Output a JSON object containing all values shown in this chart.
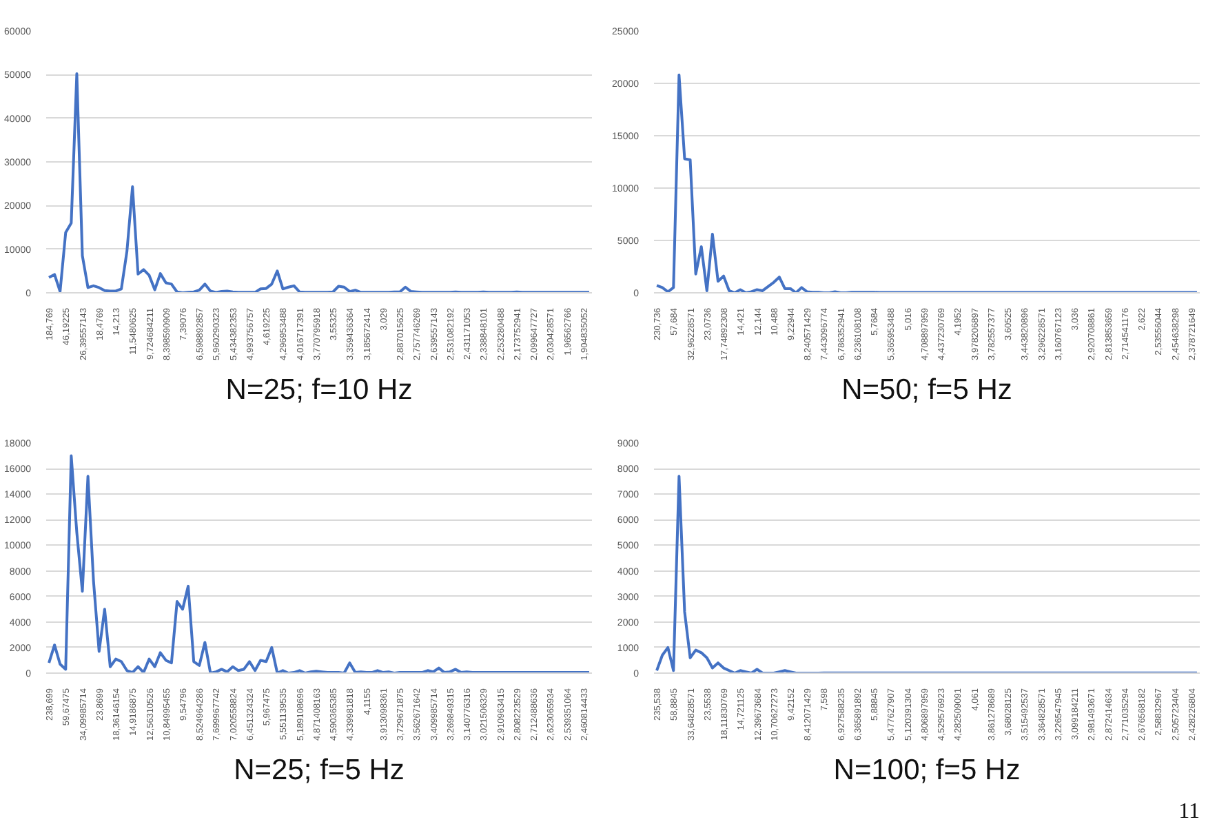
{
  "chart_data": [
    {
      "type": "line",
      "title": "N=25; f=10 Hz",
      "color": "#4472c4",
      "grid": "y",
      "ylim": [
        0,
        60000
      ],
      "yticks": [
        0,
        10000,
        20000,
        30000,
        40000,
        50000,
        60000
      ],
      "categories": [
        "184,769",
        null,
        null,
        "46,19225",
        null,
        null,
        "26,39557143",
        null,
        null,
        "18,4769",
        null,
        null,
        "14,213",
        null,
        null,
        "11,5480625",
        null,
        null,
        "9,724684211",
        null,
        null,
        "8,398590909",
        null,
        null,
        "7,39076",
        null,
        null,
        "6,598892857",
        null,
        null,
        "5,960290323",
        null,
        null,
        "5,434382353",
        null,
        null,
        "4,993756757",
        null,
        null,
        "4,619225",
        null,
        null,
        "4,296953488",
        null,
        null,
        "4,016717391",
        null,
        null,
        "3,770795918",
        null,
        null,
        "3,55325",
        null,
        null,
        "3,359436364",
        null,
        null,
        "3,185672414",
        null,
        null,
        "3,029",
        null,
        null,
        "2,887015625",
        null,
        null,
        "2,757746269",
        null,
        null,
        "2,639557143",
        null,
        null,
        "2,531082192",
        null,
        null,
        "2,431171053",
        null,
        null,
        "2,338848101",
        null,
        null,
        "2,253280488",
        null,
        null,
        "2,173752941",
        null,
        null,
        "2,099647727",
        null,
        null,
        "2,030428571",
        null,
        null,
        "1,96562766",
        null,
        null,
        "1,904835052",
        null
      ],
      "values": [
        3500,
        4200,
        300,
        13800,
        16000,
        50200,
        8500,
        1200,
        1600,
        1200,
        500,
        400,
        400,
        900,
        9500,
        24300,
        4300,
        5300,
        4000,
        700,
        4400,
        2300,
        2000,
        200,
        0,
        100,
        200,
        600,
        2000,
        400,
        100,
        300,
        400,
        200,
        100,
        100,
        100,
        100,
        900,
        1000,
        2000,
        5000,
        900,
        1300,
        1600,
        200,
        100,
        100,
        100,
        100,
        100,
        200,
        1500,
        1300,
        300,
        600,
        100,
        100,
        100,
        100,
        100,
        100,
        200,
        200,
        1300,
        300,
        200,
        100,
        100,
        100,
        100,
        100,
        100,
        200,
        100,
        100,
        100,
        100,
        200,
        100,
        100,
        100,
        100,
        100,
        200,
        100,
        100,
        100,
        100,
        100,
        100,
        100,
        100,
        100,
        100,
        100,
        100,
        100
      ]
    },
    {
      "type": "line",
      "title": "N=50; f=5 Hz",
      "color": "#4472c4",
      "grid": "y",
      "ylim": [
        0,
        25000
      ],
      "yticks": [
        0,
        5000,
        10000,
        15000,
        20000,
        25000
      ],
      "categories": [
        "230,736",
        null,
        null,
        "57,684",
        null,
        null,
        "32,96228571",
        null,
        null,
        "23,0736",
        null,
        null,
        "17,74892308",
        null,
        null,
        "14,421",
        null,
        null,
        "12,144",
        null,
        null,
        "10,488",
        null,
        null,
        "9,22944",
        null,
        null,
        "8,240571429",
        null,
        null,
        "7,443096774",
        null,
        null,
        "6,786352941",
        null,
        null,
        "6,236108108",
        null,
        null,
        "5,7684",
        null,
        null,
        "5,365953488",
        null,
        null,
        "5,016",
        null,
        null,
        "4,708897959",
        null,
        null,
        "4,437230769",
        null,
        null,
        "4,1952",
        null,
        null,
        "3,978206897",
        null,
        null,
        "3,782557377",
        null,
        null,
        "3,60525",
        null,
        null,
        "3,443820896",
        null,
        null,
        "3,296228571",
        null,
        null,
        "3,160767123",
        null,
        null,
        "3,036",
        null,
        null,
        "2,920708861",
        null,
        null,
        "2,813853659",
        null,
        null,
        "2,714541176",
        null,
        null,
        "2,622",
        null,
        null,
        "2,53556044",
        null,
        null,
        "2,454638298",
        null,
        null,
        "2,378721649",
        null
      ],
      "values": [
        700,
        500,
        100,
        500,
        20800,
        12800,
        12700,
        1800,
        4400,
        200,
        5600,
        1100,
        1600,
        200,
        0,
        300,
        0,
        100,
        300,
        200,
        600,
        1000,
        1500,
        400,
        400,
        0,
        500,
        100,
        50,
        50,
        0,
        0,
        100,
        0,
        0,
        50,
        50,
        50,
        50,
        50,
        30,
        30,
        30,
        30,
        30,
        30,
        30,
        30,
        30,
        30,
        30,
        30,
        30,
        30,
        30,
        30,
        30,
        30,
        30,
        30,
        30,
        30,
        30,
        30,
        30,
        30,
        30,
        30,
        30,
        30,
        30,
        30,
        30,
        30,
        30,
        30,
        30,
        30,
        30,
        30,
        30,
        30,
        30,
        30,
        30,
        30,
        30,
        30,
        30,
        30,
        30,
        30,
        30,
        30,
        30,
        30,
        30,
        30
      ]
    },
    {
      "type": "line",
      "title": "N=25; f=5 Hz",
      "color": "#4472c4",
      "grid": "y",
      "ylim": [
        0,
        18000
      ],
      "yticks": [
        0,
        2000,
        4000,
        6000,
        8000,
        10000,
        12000,
        14000,
        16000,
        18000
      ],
      "categories": [
        "238,699",
        null,
        null,
        "59,67475",
        null,
        null,
        "34,09985714",
        null,
        null,
        "23,8699",
        null,
        null,
        "18,36146154",
        null,
        null,
        "14,9186875",
        null,
        null,
        "12,56310526",
        null,
        null,
        "10,84995455",
        null,
        null,
        "9,54796",
        null,
        null,
        "8,524964286",
        null,
        null,
        "7,699967742",
        null,
        null,
        "7,020558824",
        null,
        null,
        "6,451324324",
        null,
        null,
        "5,967475",
        null,
        null,
        "5,551139535",
        null,
        null,
        "5,189108696",
        null,
        null,
        "4,871408163",
        null,
        null,
        "4,590365385",
        null,
        null,
        "4,339981818",
        null,
        null,
        "4,1155",
        null,
        null,
        "3,913098361",
        null,
        null,
        "3,729671875",
        null,
        null,
        "3,562671642",
        null,
        null,
        "3,409985714",
        null,
        null,
        "3,269849315",
        null,
        null,
        "3,140776316",
        null,
        null,
        "3,021506329",
        null,
        null,
        "2,910963415",
        null,
        null,
        "2,808223529",
        null,
        null,
        "2,712488636",
        null,
        null,
        "2,623065934",
        null,
        null,
        "2,539351064",
        null,
        null,
        "2,460814433",
        null
      ],
      "values": [
        800,
        2200,
        700,
        300,
        17000,
        11000,
        6400,
        15400,
        7200,
        1700,
        5000,
        500,
        1100,
        900,
        200,
        50,
        500,
        50,
        1100,
        500,
        1600,
        1000,
        800,
        5600,
        5000,
        6800,
        900,
        600,
        2400,
        0,
        100,
        300,
        100,
        500,
        200,
        300,
        900,
        200,
        1000,
        900,
        2000,
        0,
        200,
        0,
        50,
        200,
        0,
        100,
        150,
        100,
        50,
        50,
        50,
        0,
        800,
        50,
        100,
        50,
        50,
        200,
        50,
        100,
        0,
        50,
        50,
        50,
        50,
        50,
        200,
        100,
        400,
        50,
        100,
        300,
        50,
        100,
        50,
        50,
        50,
        50,
        50,
        50,
        50,
        50,
        50,
        50,
        50,
        50,
        50,
        50,
        50,
        50,
        50,
        50,
        50,
        50,
        50,
        50
      ]
    },
    {
      "type": "line",
      "title": "N=100; f=5 Hz",
      "color": "#4472c4",
      "grid": "y",
      "ylim": [
        0,
        9000
      ],
      "yticks": [
        0,
        1000,
        2000,
        3000,
        4000,
        5000,
        6000,
        7000,
        8000,
        9000
      ],
      "annotations": [
        "11"
      ],
      "categories": [
        "235,538",
        null,
        null,
        "58,8845",
        null,
        null,
        "33,64828571",
        null,
        null,
        "23,5538",
        null,
        null,
        "18,11830769",
        null,
        null,
        "14,721125",
        null,
        null,
        "12,39673684",
        null,
        null,
        "10,70627273",
        null,
        null,
        "9,42152",
        null,
        null,
        "8,412071429",
        null,
        null,
        "7,598",
        null,
        null,
        "6,927588235",
        null,
        null,
        "6,365891892",
        null,
        null,
        "5,88845",
        null,
        null,
        "5,477627907",
        null,
        null,
        "5,120391304",
        null,
        null,
        "4,806897959",
        null,
        null,
        "4,529576923",
        null,
        null,
        "4,282509091",
        null,
        null,
        "4,061",
        null,
        null,
        "3,861278689",
        null,
        null,
        "3,68028125",
        null,
        null,
        "3,515492537",
        null,
        null,
        "3,364828571",
        null,
        null,
        "3,226547945",
        null,
        null,
        "3,099184211",
        null,
        null,
        "2,981493671",
        null,
        null,
        "2,872414634",
        null,
        null,
        "2,771035294",
        null,
        null,
        "2,676568182",
        null,
        null,
        "2,58832967",
        null,
        null,
        "2,505723404",
        null,
        null,
        "2,428226804",
        null
      ],
      "values": [
        100,
        700,
        1000,
        100,
        7700,
        2400,
        600,
        900,
        800,
        600,
        200,
        400,
        200,
        100,
        0,
        100,
        50,
        0,
        150,
        0,
        0,
        0,
        50,
        100,
        50,
        0,
        0,
        0,
        0,
        0,
        10,
        10,
        10,
        10,
        10,
        10,
        10,
        10,
        10,
        10,
        10,
        10,
        10,
        10,
        10,
        10,
        10,
        10,
        10,
        10,
        10,
        10,
        10,
        10,
        10,
        10,
        10,
        10,
        10,
        10,
        10,
        10,
        10,
        10,
        10,
        10,
        10,
        10,
        10,
        10,
        10,
        10,
        10,
        10,
        10,
        10,
        10,
        10,
        10,
        10,
        10,
        10,
        10,
        10,
        10,
        10,
        10,
        10,
        10,
        10,
        10,
        10,
        10,
        10,
        10,
        10,
        10,
        10
      ]
    }
  ]
}
